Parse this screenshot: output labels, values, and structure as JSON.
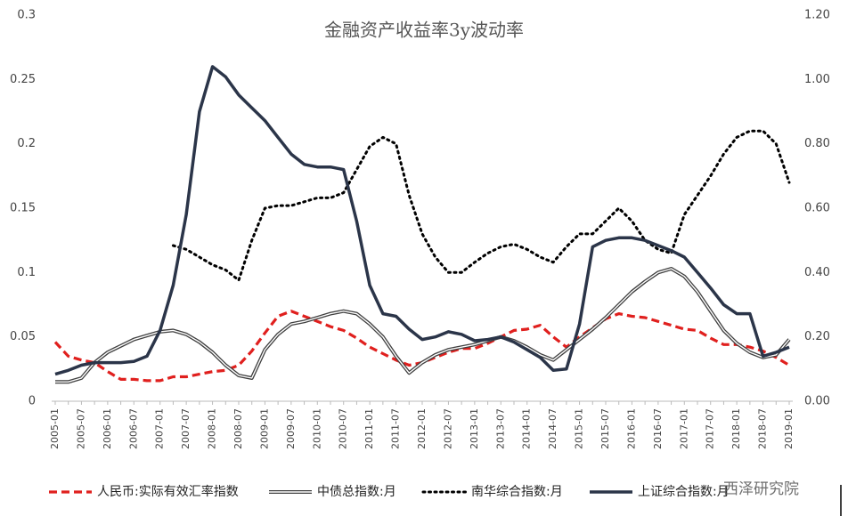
{
  "chart_data": {
    "type": "line",
    "title": "金融资产收益率3y波动率",
    "categories": [
      "2005-01",
      null,
      "2005-07",
      null,
      "2006-01",
      null,
      "2006-07",
      null,
      "2007-01",
      null,
      "2007-07",
      null,
      "2008-01",
      null,
      "2008-07",
      null,
      "2009-01",
      null,
      "2009-07",
      null,
      "2010-01",
      null,
      "2010-07",
      null,
      "2011-01",
      null,
      "2011-07",
      null,
      "2012-01",
      null,
      "2012-07",
      null,
      "2013-01",
      null,
      "2013-07",
      null,
      "2014-01",
      null,
      "2014-07",
      null,
      "2015-01",
      null,
      "2015-07",
      null,
      "2016-01",
      null,
      "2016-07",
      null,
      "2017-01",
      null,
      "2017-07",
      null,
      "2018-01",
      null,
      "2018-07",
      null,
      "2019-01"
    ],
    "series": [
      {
        "name": "人民币:实际有效汇率指数",
        "color": "#e0201e",
        "line_style": "dashed",
        "values": [
          0.046,
          0.035,
          0.032,
          0.03,
          0.023,
          0.017,
          0.017,
          0.016,
          0.016,
          0.019,
          0.019,
          0.021,
          0.023,
          0.024,
          0.028,
          0.039,
          0.053,
          0.066,
          0.07,
          0.066,
          0.062,
          0.058,
          0.055,
          0.049,
          0.042,
          0.037,
          0.032,
          0.028,
          0.03,
          0.034,
          0.038,
          0.041,
          0.041,
          0.045,
          0.05,
          0.055,
          0.056,
          0.059,
          0.05,
          0.042,
          0.05,
          0.057,
          0.064,
          0.068,
          0.066,
          0.065,
          0.062,
          0.059,
          0.056,
          0.055,
          0.049,
          0.044,
          0.044,
          0.042,
          0.039,
          0.034,
          0.028
        ]
      },
      {
        "name": "中债总指数:月",
        "color": "#404040",
        "line_style": "double",
        "values": [
          0.015,
          0.015,
          0.018,
          0.03,
          0.038,
          0.043,
          0.048,
          0.051,
          0.054,
          0.055,
          0.052,
          0.046,
          0.038,
          0.028,
          0.02,
          0.018,
          0.04,
          0.052,
          0.06,
          0.062,
          0.065,
          0.068,
          0.07,
          0.068,
          0.06,
          0.05,
          0.035,
          0.022,
          0.03,
          0.036,
          0.04,
          0.042,
          0.044,
          0.047,
          0.05,
          0.047,
          0.042,
          0.036,
          0.032,
          0.04,
          0.048,
          0.056,
          0.065,
          0.075,
          0.085,
          0.093,
          0.1,
          0.103,
          0.097,
          0.085,
          0.07,
          0.055,
          0.045,
          0.038,
          0.034,
          0.036,
          0.048
        ]
      },
      {
        "name": "南华综合指数:月",
        "color": "#000000",
        "line_style": "dotted",
        "values": [
          null,
          null,
          null,
          null,
          null,
          null,
          null,
          null,
          null,
          0.121,
          0.118,
          0.112,
          0.106,
          0.102,
          0.094,
          0.125,
          0.15,
          0.152,
          0.152,
          0.155,
          0.158,
          0.158,
          0.162,
          0.18,
          0.198,
          0.205,
          0.2,
          0.16,
          0.13,
          0.112,
          0.1,
          0.1,
          0.108,
          0.115,
          0.12,
          0.122,
          0.118,
          0.112,
          0.108,
          0.12,
          0.13,
          0.13,
          0.14,
          0.15,
          0.14,
          0.125,
          0.118,
          0.115,
          0.145,
          0.16,
          0.175,
          0.192,
          0.205,
          0.21,
          0.21,
          0.2,
          0.17
        ]
      },
      {
        "name": "上证综合指数:月",
        "color": "#2b3549",
        "line_style": "solid",
        "values": [
          0.021,
          0.024,
          0.028,
          0.03,
          0.03,
          0.03,
          0.031,
          0.035,
          0.055,
          0.09,
          0.145,
          0.225,
          0.26,
          0.252,
          0.238,
          0.228,
          0.218,
          0.205,
          0.192,
          0.184,
          0.182,
          0.182,
          0.18,
          0.14,
          0.09,
          0.068,
          0.066,
          0.056,
          0.048,
          0.05,
          0.054,
          0.052,
          0.047,
          0.048,
          0.05,
          0.046,
          0.04,
          0.034,
          0.024,
          0.025,
          0.06,
          0.12,
          0.125,
          0.127,
          0.127,
          0.125,
          0.121,
          0.117,
          0.112,
          0.1,
          0.088,
          0.075,
          0.068,
          0.068,
          0.035,
          0.038,
          0.042
        ]
      }
    ],
    "ylim": [
      0,
      0.3
    ],
    "yticks": [
      0,
      0.05,
      0.1,
      0.15,
      0.2,
      0.25,
      0.3
    ],
    "y2lim": [
      0,
      1.2
    ],
    "y2ticks": [
      {
        "value": 0,
        "label": "0.00"
      },
      {
        "value": 0.2,
        "label": "0.20"
      },
      {
        "value": 0.4,
        "label": "0.40"
      },
      {
        "value": 0.6,
        "label": "0.60"
      },
      {
        "value": 0.8,
        "label": "0.80"
      },
      {
        "value": 1.0,
        "label": "1.00"
      },
      {
        "value": 1.2,
        "label": "1.20"
      }
    ],
    "grid": false,
    "legend": "bottom",
    "watermark": "西泽研究院"
  }
}
